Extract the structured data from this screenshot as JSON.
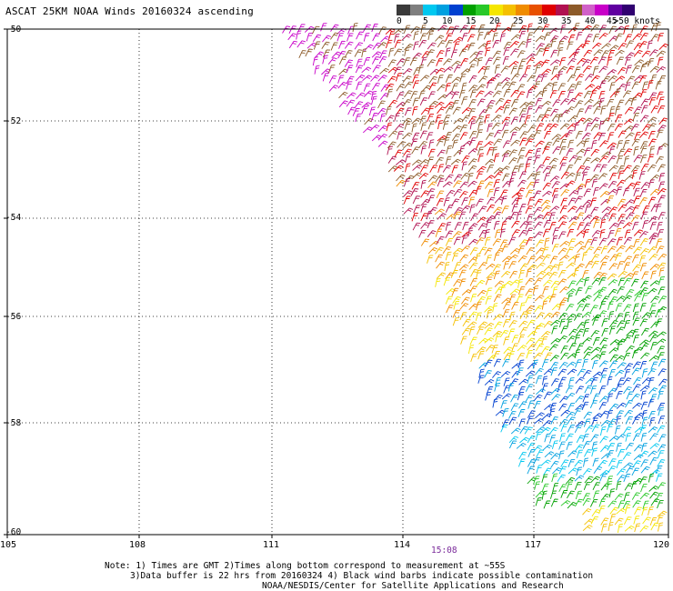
{
  "header": {
    "title": "ASCAT 25KM NOAA Winds 20160324 ascending"
  },
  "legend": {
    "colors": [
      "#3a3a3a",
      "#7f7f7f",
      "#00c8f0",
      "#00a0e0",
      "#0040d0",
      "#00a000",
      "#28c828",
      "#f5e600",
      "#f5c000",
      "#f08c00",
      "#e85000",
      "#e00000",
      "#b01050",
      "#8c5a28",
      "#d060c8",
      "#c800c8",
      "#6000a0",
      "#300070"
    ],
    "labels": [
      {
        "text": "0",
        "pos": 0.0
      },
      {
        "text": "5",
        "pos": 0.11
      },
      {
        "text": "10",
        "pos": 0.19
      },
      {
        "text": "15",
        "pos": 0.29
      },
      {
        "text": "20",
        "pos": 0.39
      },
      {
        "text": "25",
        "pos": 0.49
      },
      {
        "text": "30",
        "pos": 0.59
      },
      {
        "text": "35",
        "pos": 0.69
      },
      {
        "text": "40",
        "pos": 0.79
      },
      {
        "text": "45",
        "pos": 0.88
      },
      {
        "text": ">50 knots",
        "pos": 0.96
      }
    ]
  },
  "axes": {
    "lon_ticks": [
      "105",
      "108",
      "111",
      "114",
      "117",
      "120"
    ],
    "lat_ticks": [
      "-50",
      "-52",
      "-54",
      "-56",
      "-58",
      "-60"
    ]
  },
  "pass_time": "15:08",
  "notes": {
    "line1": "Note: 1) Times are GMT 2)Times along bottom correspond to measurement at ~55S",
    "line2": "3)Data buffer is 22 hrs from 20160324 4) Black wind barbs indicate possible contamination",
    "line3": "NOAA/NESDIS/Center for Satellite Applications and Research"
  }
}
